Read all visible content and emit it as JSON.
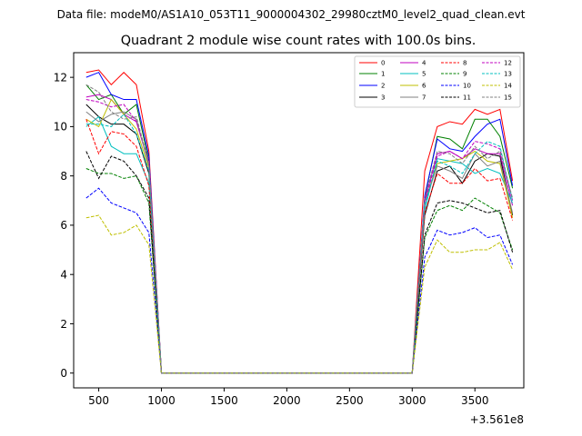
{
  "figure": {
    "suptitle": "Data file: modeM0/AS1A10_053T11_9000004302_29980cztM0_level2_quad_clean.evt"
  },
  "chart_data": {
    "type": "line",
    "title": "Quadrant 2 module wise count rates with 100.0s bins.",
    "xlabel": "",
    "ylabel": "",
    "offset_text": "+3.561e8",
    "xlim": [
      300,
      3890
    ],
    "ylim": [
      -0.6,
      13.0
    ],
    "xticks": [
      500,
      1000,
      1500,
      2000,
      2500,
      3000,
      3500
    ],
    "yticks": [
      0,
      2,
      4,
      6,
      8,
      10,
      12
    ],
    "grid": false,
    "legend_placement": "top-right",
    "x": [
      400,
      500,
      600,
      700,
      800,
      900,
      1000,
      1100,
      1200,
      1300,
      1400,
      1500,
      1600,
      1700,
      1800,
      1900,
      2000,
      2100,
      2200,
      2300,
      2400,
      2500,
      2600,
      2700,
      2800,
      2900,
      3000,
      3100,
      3200,
      3300,
      3400,
      3500,
      3600,
      3700,
      3800
    ],
    "series": [
      {
        "name": "0",
        "color": "#ff0000",
        "dash": "solid",
        "values": [
          12.2,
          12.3,
          11.7,
          12.2,
          11.7,
          9.0,
          0,
          0,
          0,
          0,
          0,
          0,
          0,
          0,
          0,
          0,
          0,
          0,
          0,
          0,
          0,
          0,
          0,
          0,
          0,
          0,
          0,
          8.2,
          10.0,
          10.2,
          10.1,
          10.7,
          10.5,
          10.7,
          7.8
        ]
      },
      {
        "name": "1",
        "color": "#008000",
        "dash": "solid",
        "values": [
          11.7,
          11.1,
          11.3,
          10.5,
          10.9,
          8.6,
          0,
          0,
          0,
          0,
          0,
          0,
          0,
          0,
          0,
          0,
          0,
          0,
          0,
          0,
          0,
          0,
          0,
          0,
          0,
          0,
          0,
          7.1,
          9.6,
          9.5,
          9.1,
          10.3,
          10.3,
          9.6,
          7.5
        ]
      },
      {
        "name": "2",
        "color": "#0000ff",
        "dash": "solid",
        "values": [
          12.0,
          12.2,
          11.3,
          11.1,
          11.1,
          8.8,
          0,
          0,
          0,
          0,
          0,
          0,
          0,
          0,
          0,
          0,
          0,
          0,
          0,
          0,
          0,
          0,
          0,
          0,
          0,
          0,
          0,
          7.2,
          9.5,
          9.1,
          9.0,
          9.6,
          10.1,
          10.3,
          7.6
        ]
      },
      {
        "name": "3",
        "color": "#000000",
        "dash": "solid",
        "values": [
          10.9,
          10.4,
          10.1,
          10.1,
          9.7,
          8.1,
          0,
          0,
          0,
          0,
          0,
          0,
          0,
          0,
          0,
          0,
          0,
          0,
          0,
          0,
          0,
          0,
          0,
          0,
          0,
          0,
          0,
          6.4,
          8.2,
          8.4,
          7.7,
          8.6,
          8.9,
          8.8,
          6.4
        ]
      },
      {
        "name": "4",
        "color": "#bf00bf",
        "dash": "solid",
        "values": [
          11.2,
          11.3,
          11.1,
          10.5,
          10.2,
          8.5,
          0,
          0,
          0,
          0,
          0,
          0,
          0,
          0,
          0,
          0,
          0,
          0,
          0,
          0,
          0,
          0,
          0,
          0,
          0,
          0,
          0,
          7.0,
          8.9,
          9.0,
          8.7,
          9.1,
          8.9,
          8.9,
          6.8
        ]
      },
      {
        "name": "5",
        "color": "#00bfbf",
        "dash": "solid",
        "values": [
          10.0,
          10.4,
          9.2,
          8.9,
          8.9,
          7.7,
          0,
          0,
          0,
          0,
          0,
          0,
          0,
          0,
          0,
          0,
          0,
          0,
          0,
          0,
          0,
          0,
          0,
          0,
          0,
          0,
          0,
          6.6,
          8.7,
          8.6,
          8.5,
          8.1,
          8.3,
          8.1,
          6.9
        ]
      },
      {
        "name": "6",
        "color": "#bfbf00",
        "dash": "solid",
        "values": [
          10.3,
          10.0,
          11.1,
          10.5,
          9.9,
          8.3,
          0,
          0,
          0,
          0,
          0,
          0,
          0,
          0,
          0,
          0,
          0,
          0,
          0,
          0,
          0,
          0,
          0,
          0,
          0,
          0,
          0,
          6.9,
          8.5,
          8.6,
          8.7,
          9.0,
          8.6,
          8.5,
          6.3
        ]
      },
      {
        "name": "7",
        "color": "#808080",
        "dash": "solid",
        "values": [
          10.6,
          10.2,
          10.5,
          10.6,
          10.3,
          8.4,
          0,
          0,
          0,
          0,
          0,
          0,
          0,
          0,
          0,
          0,
          0,
          0,
          0,
          0,
          0,
          0,
          0,
          0,
          0,
          0,
          0,
          6.9,
          8.4,
          8.2,
          7.9,
          8.9,
          8.4,
          8.6,
          6.5
        ]
      },
      {
        "name": "8",
        "color": "#ff0000",
        "dash": "dashed",
        "values": [
          10.3,
          8.9,
          9.8,
          9.7,
          9.2,
          7.6,
          0,
          0,
          0,
          0,
          0,
          0,
          0,
          0,
          0,
          0,
          0,
          0,
          0,
          0,
          0,
          0,
          0,
          0,
          0,
          0,
          0,
          6.5,
          8.1,
          7.7,
          7.7,
          8.3,
          7.8,
          7.9,
          6.2
        ]
      },
      {
        "name": "9",
        "color": "#008000",
        "dash": "dashed",
        "values": [
          8.3,
          8.1,
          8.1,
          7.9,
          8.0,
          6.9,
          0,
          0,
          0,
          0,
          0,
          0,
          0,
          0,
          0,
          0,
          0,
          0,
          0,
          0,
          0,
          0,
          0,
          0,
          0,
          0,
          0,
          5.5,
          6.6,
          6.8,
          6.6,
          7.1,
          6.8,
          6.5,
          5.0
        ]
      },
      {
        "name": "10",
        "color": "#0000ff",
        "dash": "dashed",
        "values": [
          7.1,
          7.5,
          6.9,
          6.7,
          6.5,
          5.7,
          0,
          0,
          0,
          0,
          0,
          0,
          0,
          0,
          0,
          0,
          0,
          0,
          0,
          0,
          0,
          0,
          0,
          0,
          0,
          0,
          0,
          4.7,
          5.8,
          5.6,
          5.7,
          5.9,
          5.5,
          5.6,
          4.4
        ]
      },
      {
        "name": "11",
        "color": "#000000",
        "dash": "dashed",
        "values": [
          9.0,
          7.9,
          8.8,
          8.6,
          8.0,
          7.1,
          0,
          0,
          0,
          0,
          0,
          0,
          0,
          0,
          0,
          0,
          0,
          0,
          0,
          0,
          0,
          0,
          0,
          0,
          0,
          0,
          0,
          5.6,
          6.9,
          7.0,
          6.9,
          6.7,
          6.5,
          6.6,
          4.9
        ]
      },
      {
        "name": "12",
        "color": "#bf00bf",
        "dash": "dashed",
        "values": [
          11.1,
          11.0,
          10.8,
          10.9,
          10.2,
          8.6,
          0,
          0,
          0,
          0,
          0,
          0,
          0,
          0,
          0,
          0,
          0,
          0,
          0,
          0,
          0,
          0,
          0,
          0,
          0,
          0,
          0,
          6.9,
          8.8,
          9.0,
          8.7,
          9.4,
          9.3,
          9.1,
          7.0
        ]
      },
      {
        "name": "13",
        "color": "#00bfbf",
        "dash": "dashed",
        "values": [
          10.1,
          10.1,
          10.0,
          10.5,
          9.7,
          8.2,
          0,
          0,
          0,
          0,
          0,
          0,
          0,
          0,
          0,
          0,
          0,
          0,
          0,
          0,
          0,
          0,
          0,
          0,
          0,
          0,
          0,
          6.8,
          8.6,
          8.4,
          8.1,
          8.9,
          9.4,
          9.2,
          7.0
        ]
      },
      {
        "name": "14",
        "color": "#bfbf00",
        "dash": "dashed",
        "values": [
          6.3,
          6.4,
          5.6,
          5.7,
          6.0,
          5.2,
          0,
          0,
          0,
          0,
          0,
          0,
          0,
          0,
          0,
          0,
          0,
          0,
          0,
          0,
          0,
          0,
          0,
          0,
          0,
          0,
          0,
          4.3,
          5.4,
          4.9,
          4.9,
          5.0,
          5.0,
          5.3,
          4.2
        ]
      },
      {
        "name": "15",
        "color": "#808080",
        "dash": "dashed",
        "values": [
          11.7,
          11.4,
          10.6,
          10.3,
          10.4,
          8.5,
          0,
          0,
          0,
          0,
          0,
          0,
          0,
          0,
          0,
          0,
          0,
          0,
          0,
          0,
          0,
          0,
          0,
          0,
          0,
          0,
          0,
          7.1,
          9.0,
          8.9,
          8.5,
          9.2,
          8.7,
          9.0,
          7.1
        ]
      }
    ]
  }
}
